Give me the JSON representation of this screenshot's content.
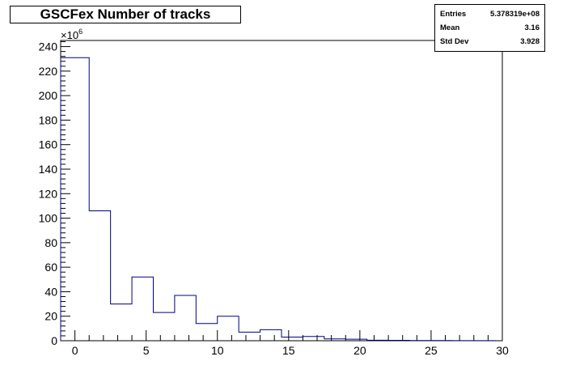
{
  "title": "GSCFex Number of tracks",
  "stats": [
    {
      "label": "Entries",
      "value": "5.378319e+08"
    },
    {
      "label": "Mean",
      "value": "3.16"
    },
    {
      "label": "Std Dev",
      "value": "3.928"
    }
  ],
  "chart_data": {
    "type": "bar",
    "title": "GSCFex Number of tracks",
    "xlabel": "",
    "ylabel": "",
    "xlim": [
      -1,
      30
    ],
    "ylim": [
      0,
      245
    ],
    "y_multiplier_label": "×10",
    "y_multiplier_exponent": "6",
    "x_ticks": [
      0,
      5,
      10,
      15,
      20,
      25,
      30
    ],
    "y_ticks": [
      0,
      20,
      40,
      60,
      80,
      100,
      120,
      140,
      160,
      180,
      200,
      220,
      240
    ],
    "bin_edges": [
      -1.0,
      1.0,
      2.5,
      4.0,
      5.5,
      7.0,
      8.5,
      10.0,
      11.5,
      13.0,
      14.5,
      16.0,
      17.5,
      19.0,
      20.5,
      22.0,
      23.5,
      25.0,
      26.5,
      28.0,
      29.5
    ],
    "values": [
      231,
      106,
      30,
      52,
      23,
      37,
      14,
      20,
      7,
      9,
      3,
      3.5,
      1.5,
      1.2,
      0.4,
      0.3,
      0.2,
      0.15,
      0.1,
      0.05
    ],
    "line_color": "#000080",
    "grid": false,
    "legend": "none"
  }
}
